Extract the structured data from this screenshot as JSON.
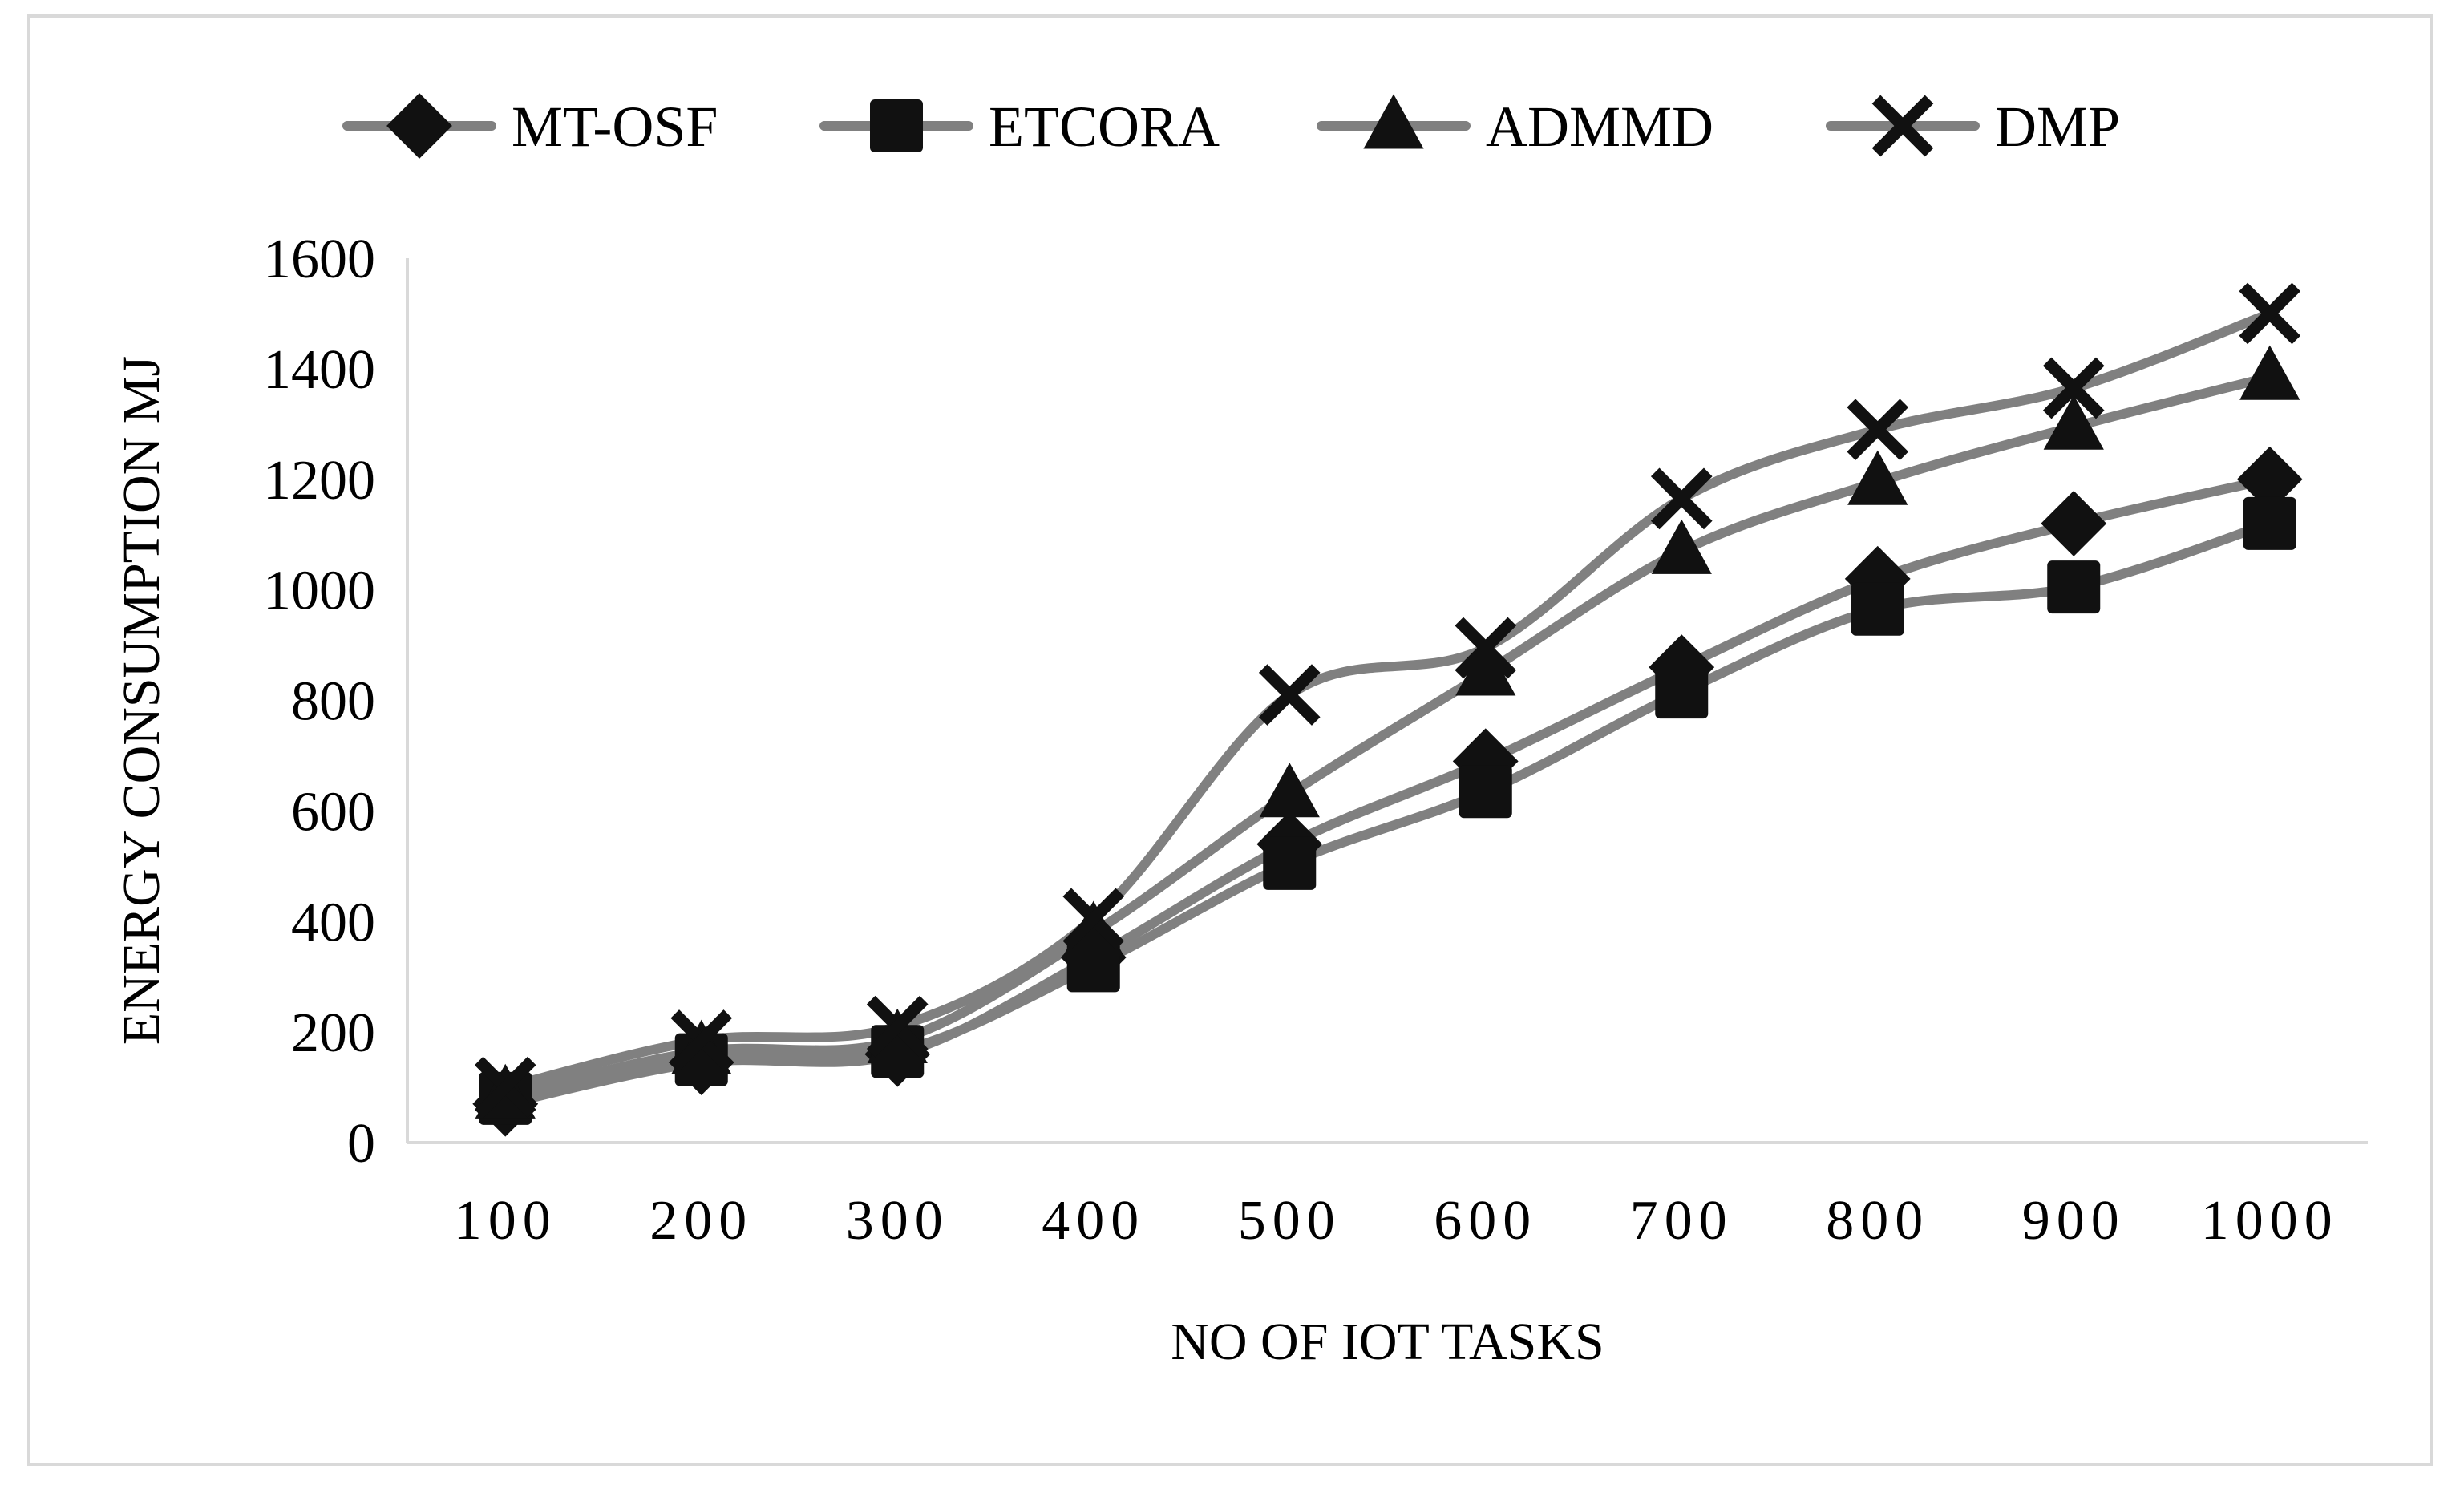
{
  "chart_data": {
    "type": "line",
    "title": "",
    "xlabel": "NO OF IOT TASKS",
    "ylabel": "ENERGY CONSUMPTION MJ",
    "categories": [
      "100",
      "200",
      "300",
      "400",
      "500",
      "600",
      "700",
      "800",
      "900",
      "1000"
    ],
    "ylim": [
      0,
      1600
    ],
    "yticks": [
      "0",
      "200",
      "400",
      "600",
      "800",
      "1000",
      "1200",
      "1400",
      "1600"
    ],
    "grid": false,
    "legend_position": "top",
    "line_color": "#808080",
    "marker_color": "#111111",
    "series": [
      {
        "name": "MT-OSF",
        "marker": "diamond",
        "values": [
          70,
          145,
          160,
          335,
          540,
          690,
          860,
          1020,
          1120,
          1200
        ]
      },
      {
        "name": "ETCORA",
        "marker": "square",
        "values": [
          80,
          150,
          165,
          320,
          505,
          635,
          815,
          965,
          1005,
          1120
        ]
      },
      {
        "name": "ADMMD",
        "marker": "triangle",
        "values": [
          85,
          165,
          185,
          380,
          630,
          850,
          1070,
          1195,
          1295,
          1385
        ]
      },
      {
        "name": "DMP",
        "marker": "x",
        "values": [
          100,
          185,
          210,
          405,
          810,
          895,
          1165,
          1290,
          1365,
          1500
        ]
      }
    ]
  }
}
